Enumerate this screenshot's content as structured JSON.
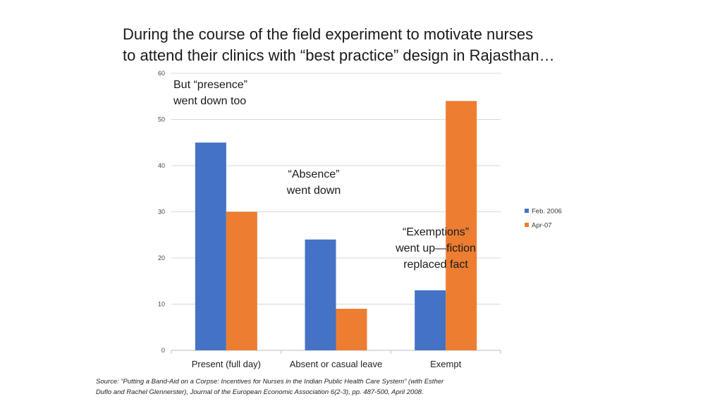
{
  "title": {
    "line1": "During the course of the field experiment to motivate nurses",
    "line2": "to attend their clinics with “best practice” design in Rajasthan…"
  },
  "annotations": {
    "presence_1": "But “presence”",
    "presence_2": "went down too",
    "absence_1": "“Absence”",
    "absence_2": "went down",
    "exemptions_1": "“Exemptions”",
    "exemptions_2": "went up—fiction",
    "exemptions_3": "replaced fact"
  },
  "source": {
    "line1": "Source: “Putting a Band-Aid on a Corpse: Incentives for Nurses in the Indian Public Health Care System” (with Esther",
    "line2": "Duflo and Rachel Glennerster), Journal of the European Economic Association 6(2-3), pp. 487-500, April 2008."
  },
  "colors": {
    "feb2006": "#4472C4",
    "apr07": "#ED7D31",
    "grid": "#d9d9d9",
    "axis": "#bfbfbf"
  },
  "chart_data": {
    "type": "bar",
    "categories": [
      "Present (full day)",
      "Absent or casual leave",
      "Exempt"
    ],
    "series": [
      {
        "name": "Feb. 2006",
        "values": [
          45,
          24,
          13
        ]
      },
      {
        "name": "Apr-07",
        "values": [
          30,
          9,
          54
        ]
      }
    ],
    "ylim": [
      0,
      60
    ],
    "yticks": [
      0,
      10,
      20,
      30,
      40,
      50,
      60
    ],
    "grid": true,
    "legend_position": "right"
  }
}
